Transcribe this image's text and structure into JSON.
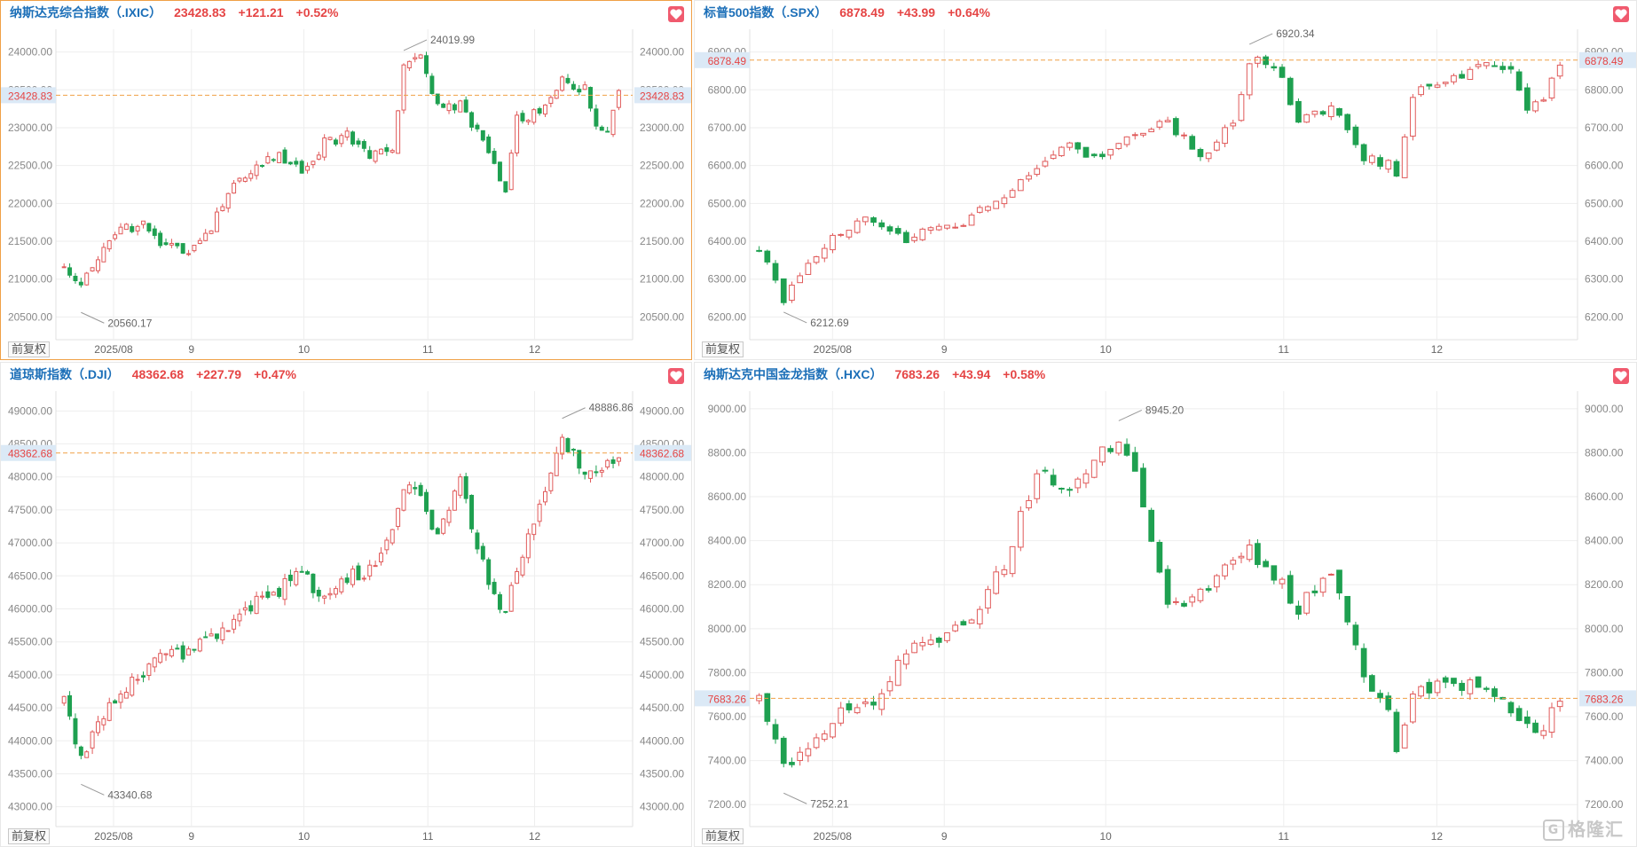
{
  "watermark": "格隆汇",
  "chart_data": [
    {
      "type": "candlestick",
      "name": "纳斯达克综合指数（.IXIC）",
      "price": "23428.83",
      "change": "+121.21",
      "change_pct": "+0.52%",
      "last": 23428.83,
      "last_label": "23428.83",
      "y_ticks": [
        20500,
        21000,
        21500,
        22000,
        22500,
        23000,
        23500,
        24000
      ],
      "y_tick_labels": [
        "20500.00",
        "21000.00",
        "21500.00",
        "22000.00",
        "22500.00",
        "23000.00",
        "23500.00",
        "24000.00"
      ],
      "ylim": [
        20200,
        24300
      ],
      "x_labels": [
        "2025/08",
        "9",
        "10",
        "11",
        "12"
      ],
      "x_label_pos": [
        0.1,
        0.235,
        0.43,
        0.645,
        0.83
      ],
      "high": {
        "value": 24019.99,
        "label": "24019.99",
        "index": 60
      },
      "low": {
        "value": 20560.17,
        "label": "20560.17",
        "index": 3
      },
      "anchors": [
        [
          0,
          21200
        ],
        [
          3,
          20950
        ],
        [
          6,
          21250
        ],
        [
          10,
          21650
        ],
        [
          14,
          21700
        ],
        [
          18,
          21400
        ],
        [
          22,
          21400
        ],
        [
          26,
          21700
        ],
        [
          30,
          22200
        ],
        [
          34,
          22500
        ],
        [
          38,
          22650
        ],
        [
          42,
          22400
        ],
        [
          46,
          22800
        ],
        [
          50,
          22900
        ],
        [
          54,
          22600
        ],
        [
          58,
          22700
        ],
        [
          60,
          23800
        ],
        [
          63,
          23950
        ],
        [
          66,
          23250
        ],
        [
          70,
          23300
        ],
        [
          74,
          22800
        ],
        [
          77,
          22300
        ],
        [
          78,
          22200
        ],
        [
          80,
          23100
        ],
        [
          84,
          23200
        ],
        [
          88,
          23600
        ],
        [
          92,
          23500
        ],
        [
          94,
          23000
        ],
        [
          96,
          22900
        ],
        [
          98,
          23430
        ]
      ],
      "fq_label": "前复权",
      "active": true
    },
    {
      "type": "candlestick",
      "name": "标普500指数（.SPX）",
      "price": "6878.49",
      "change": "+43.99",
      "change_pct": "+0.64%",
      "last": 6878.49,
      "last_label": "6878.49",
      "y_ticks": [
        6200,
        6300,
        6400,
        6500,
        6600,
        6700,
        6800,
        6900
      ],
      "y_tick_labels": [
        "6200.00",
        "6300.00",
        "6400.00",
        "6500.00",
        "6600.00",
        "6700.00",
        "6800.00",
        "6900.00"
      ],
      "ylim": [
        6140,
        6960
      ],
      "x_labels": [
        "2025/08",
        "9",
        "10",
        "11",
        "12"
      ],
      "x_label_pos": [
        0.1,
        0.235,
        0.43,
        0.645,
        0.83
      ],
      "high": {
        "value": 6920.34,
        "label": "6920.34",
        "index": 60
      },
      "low": {
        "value": 6212.69,
        "label": "6212.69",
        "index": 3
      },
      "anchors": [
        [
          0,
          6380
        ],
        [
          3,
          6250
        ],
        [
          6,
          6350
        ],
        [
          10,
          6420
        ],
        [
          14,
          6460
        ],
        [
          18,
          6410
        ],
        [
          22,
          6440
        ],
        [
          26,
          6460
        ],
        [
          30,
          6520
        ],
        [
          34,
          6600
        ],
        [
          38,
          6650
        ],
        [
          42,
          6620
        ],
        [
          46,
          6690
        ],
        [
          50,
          6720
        ],
        [
          54,
          6620
        ],
        [
          58,
          6720
        ],
        [
          60,
          6880
        ],
        [
          63,
          6870
        ],
        [
          66,
          6720
        ],
        [
          70,
          6760
        ],
        [
          74,
          6620
        ],
        [
          77,
          6600
        ],
        [
          78,
          6580
        ],
        [
          80,
          6790
        ],
        [
          84,
          6830
        ],
        [
          88,
          6860
        ],
        [
          92,
          6860
        ],
        [
          94,
          6760
        ],
        [
          96,
          6780
        ],
        [
          98,
          6878
        ]
      ],
      "fq_label": "前复权",
      "active": false
    },
    {
      "type": "candlestick",
      "name": "道琼斯指数（.DJI）",
      "price": "48362.68",
      "change": "+227.79",
      "change_pct": "+0.47%",
      "last": 48362.68,
      "last_label": "48362.68",
      "y_ticks": [
        43000,
        43500,
        44000,
        44500,
        45000,
        45500,
        46000,
        46500,
        47000,
        47500,
        48000,
        48500,
        49000
      ],
      "y_tick_labels": [
        "43000.00",
        "43500.00",
        "44000.00",
        "44500.00",
        "45000.00",
        "45500.00",
        "46000.00",
        "46500.00",
        "47000.00",
        "47500.00",
        "48000.00",
        "48500.00",
        "49000.00"
      ],
      "ylim": [
        42700,
        49300
      ],
      "x_labels": [
        "2025/08",
        "9",
        "10",
        "11",
        "12"
      ],
      "x_label_pos": [
        0.1,
        0.235,
        0.43,
        0.645,
        0.83
      ],
      "high": {
        "value": 48886.86,
        "label": "48886.86",
        "index": 88
      },
      "low": {
        "value": 43340.68,
        "label": "43340.68",
        "index": 3
      },
      "anchors": [
        [
          0,
          44700
        ],
        [
          3,
          43700
        ],
        [
          6,
          44200
        ],
        [
          10,
          44800
        ],
        [
          14,
          45000
        ],
        [
          18,
          45400
        ],
        [
          22,
          45300
        ],
        [
          26,
          45600
        ],
        [
          30,
          45800
        ],
        [
          34,
          46100
        ],
        [
          38,
          46300
        ],
        [
          42,
          46500
        ],
        [
          46,
          46200
        ],
        [
          50,
          46500
        ],
        [
          54,
          46600
        ],
        [
          58,
          47100
        ],
        [
          60,
          47800
        ],
        [
          63,
          47700
        ],
        [
          66,
          47100
        ],
        [
          70,
          47900
        ],
        [
          74,
          46700
        ],
        [
          77,
          46000
        ],
        [
          78,
          46000
        ],
        [
          80,
          46600
        ],
        [
          84,
          47500
        ],
        [
          88,
          48600
        ],
        [
          92,
          48000
        ],
        [
          94,
          48100
        ],
        [
          96,
          48200
        ],
        [
          98,
          48363
        ]
      ],
      "fq_label": "前复权",
      "active": false
    },
    {
      "type": "candlestick",
      "name": "纳斯达克中国金龙指数（.HXC）",
      "price": "7683.26",
      "change": "+43.94",
      "change_pct": "+0.58%",
      "last": 7683.26,
      "last_label": "7683.26",
      "y_ticks": [
        7200,
        7400,
        7600,
        7800,
        8000,
        8200,
        8400,
        8600,
        8800,
        9000
      ],
      "y_tick_labels": [
        "7200.00",
        "7400.00",
        "7600.00",
        "7800.00",
        "8000.00",
        "8200.00",
        "8400.00",
        "8600.00",
        "8800.00",
        "9000.00"
      ],
      "ylim": [
        7100,
        9080
      ],
      "x_labels": [
        "2025/08",
        "9",
        "10",
        "11",
        "12"
      ],
      "x_label_pos": [
        0.1,
        0.235,
        0.43,
        0.645,
        0.83
      ],
      "high": {
        "value": 8945.2,
        "label": "8945.20",
        "index": 44
      },
      "low": {
        "value": 7252.21,
        "label": "7252.21",
        "index": 3
      },
      "anchors": [
        [
          0,
          7700
        ],
        [
          3,
          7380
        ],
        [
          6,
          7450
        ],
        [
          10,
          7620
        ],
        [
          14,
          7650
        ],
        [
          18,
          7900
        ],
        [
          22,
          7950
        ],
        [
          26,
          8050
        ],
        [
          30,
          8300
        ],
        [
          34,
          8700
        ],
        [
          38,
          8650
        ],
        [
          42,
          8800
        ],
        [
          44,
          8850
        ],
        [
          46,
          8700
        ],
        [
          50,
          8100
        ],
        [
          54,
          8150
        ],
        [
          58,
          8300
        ],
        [
          60,
          8350
        ],
        [
          63,
          8250
        ],
        [
          66,
          8100
        ],
        [
          70,
          8250
        ],
        [
          74,
          7800
        ],
        [
          77,
          7600
        ],
        [
          78,
          7450
        ],
        [
          80,
          7700
        ],
        [
          84,
          7750
        ],
        [
          88,
          7750
        ],
        [
          92,
          7650
        ],
        [
          94,
          7550
        ],
        [
          96,
          7560
        ],
        [
          98,
          7683
        ]
      ],
      "fq_label": "前复权",
      "active": false
    }
  ],
  "colors": {
    "up": "#e05a5a",
    "down": "#1ea050",
    "last_line": "#f0a046",
    "last_label_bg": "#dbe9f6",
    "last_label_text": "#e54545",
    "axis_text": "#888888",
    "grid": "#eeeeee"
  }
}
